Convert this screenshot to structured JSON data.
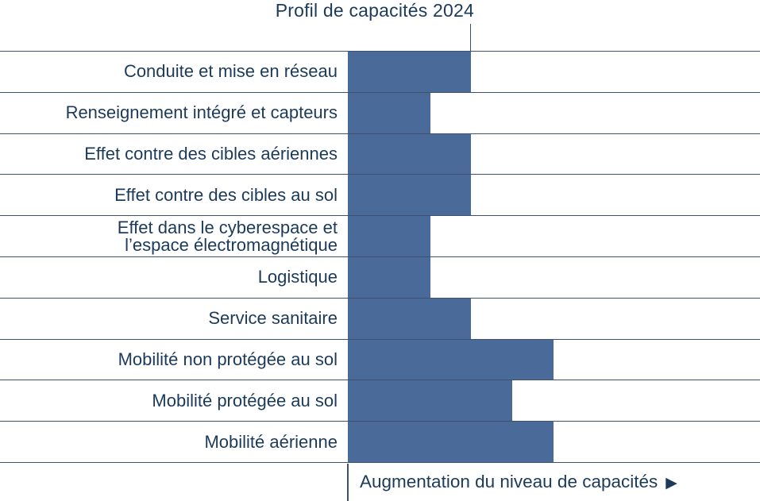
{
  "chart_data": {
    "type": "bar",
    "orientation": "horizontal",
    "title": "Profil de capacités 2024",
    "xlabel": "Augmentation du niveau de capacités",
    "arrow_icon": "▶",
    "categories": [
      "Conduite et mise en réseau",
      "Renseignement intégré et capteurs",
      "Effet contre des cibles aériennes",
      "Effet contre des cibles au sol",
      "Effet dans le cyberespace et\nl’espace électromagnétique",
      "Logistique",
      "Service sanitaire",
      "Mobilité non protégée au sol",
      "Mobilité protégée au sol",
      "Mobilité aérienne"
    ],
    "values": [
      3,
      2,
      3,
      3,
      2,
      2,
      3,
      5,
      4,
      5
    ],
    "xlim": [
      0,
      10
    ],
    "reference_level": 3,
    "grid": "horizontal-row-lines",
    "legend": "none",
    "colors": {
      "bar": "#4a6a9a",
      "grid": "#3c526c",
      "text": "#1c3a5a"
    }
  }
}
